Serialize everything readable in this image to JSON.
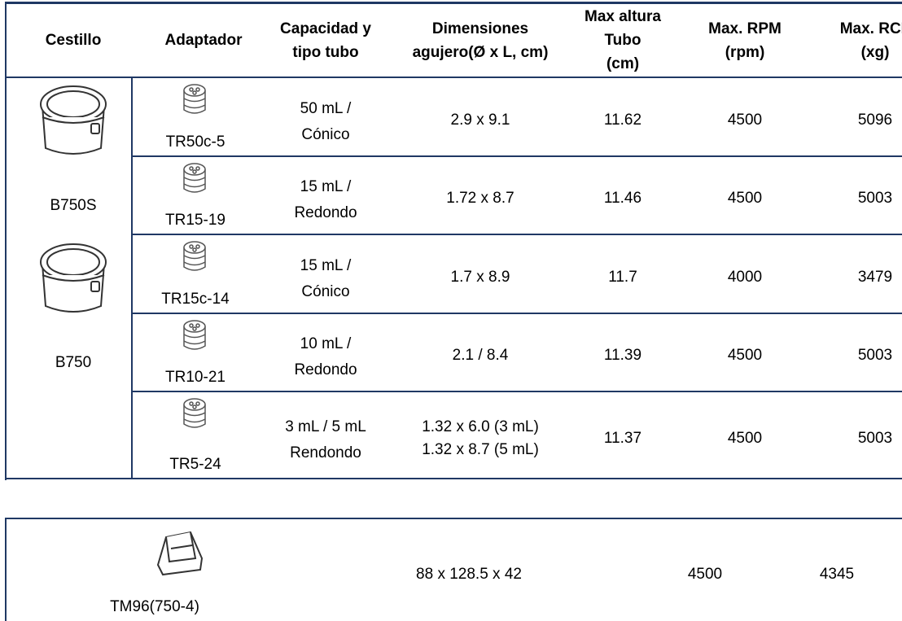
{
  "table": {
    "header": [
      [
        "Cestillo"
      ],
      [
        "Adaptador"
      ],
      [
        "Capacidad y",
        "tipo tubo"
      ],
      [
        "Dimensiones",
        "agujero(Ø x L, cm)"
      ],
      [
        "Max altura",
        "Tubo",
        "(cm)"
      ],
      [
        "Max. RPM",
        "(rpm)"
      ],
      [
        "Max. RCF",
        "(xg)"
      ]
    ],
    "buckets": [
      "B750S",
      "B750"
    ],
    "rows": [
      {
        "adapter": "TR50c-5",
        "capacity": [
          "50 mL /",
          "Cónico"
        ],
        "dimensions": [
          "2.9 x 9.1"
        ],
        "height": "11.62",
        "rpm": "4500",
        "rcf": "5096"
      },
      {
        "adapter": "TR15-19",
        "capacity": [
          "15 mL /",
          "Redondo"
        ],
        "dimensions": [
          "1.72 x 8.7"
        ],
        "height": "11.46",
        "rpm": "4500",
        "rcf": "5003"
      },
      {
        "adapter": "TR15c-14",
        "capacity": [
          "15 mL /",
          "Cónico"
        ],
        "dimensions": [
          "1.7 x 8.9"
        ],
        "height": "11.7",
        "rpm": "4000",
        "rcf": "3479"
      },
      {
        "adapter": "TR10-21",
        "capacity": [
          "10 mL /",
          "Redondo"
        ],
        "dimensions": [
          "2.1 / 8.4"
        ],
        "height": "11.39",
        "rpm": "4500",
        "rcf": "5003"
      },
      {
        "adapter": "TR5-24",
        "capacity": [
          "3 mL / 5 mL",
          "Rendondo"
        ],
        "dimensions": [
          "1.32 x 6.0 (3 mL)",
          "1.32 x 8.7 (5 mL)"
        ],
        "height": "11.37",
        "rpm": "4500",
        "rcf": "5003"
      }
    ]
  },
  "table2": {
    "label": "TM96(750-4)",
    "dimensions": "88 x 128.5 x 42",
    "rpm": "4500",
    "rcf": "4345"
  }
}
